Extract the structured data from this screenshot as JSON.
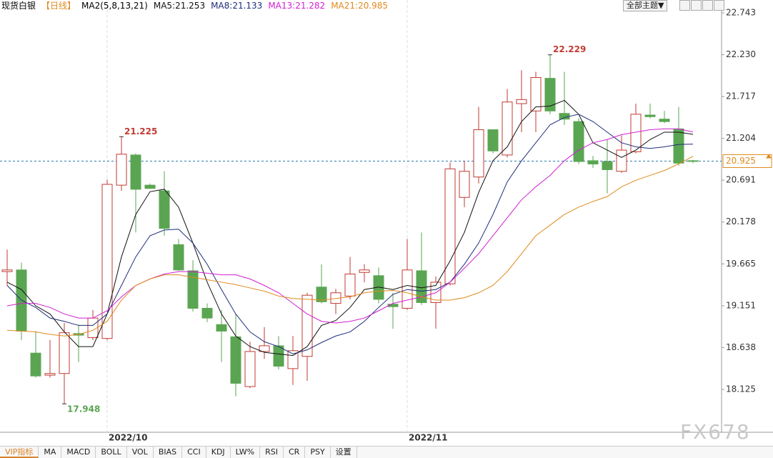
{
  "header": {
    "title": "现货白银",
    "period": "【日线】",
    "indicator": "MA2(5,8,13,21)",
    "theme_button": "全部主题▼"
  },
  "chart_data": {
    "type": "candlestick",
    "categories": [
      null,
      null,
      null,
      null,
      null,
      null,
      null,
      "2022/10",
      null,
      null,
      null,
      null,
      null,
      null,
      null,
      null,
      null,
      null,
      null,
      null,
      null,
      null,
      null,
      null,
      null,
      null,
      null,
      null,
      "2022/11",
      null,
      null,
      null,
      null,
      null,
      null,
      null,
      null,
      null,
      null,
      null,
      null,
      null,
      null,
      null,
      null,
      null,
      null,
      null,
      null
    ],
    "open": [
      19.57,
      19.59,
      18.57,
      18.3,
      18.32,
      18.81,
      18.76,
      18.75,
      20.63,
      21.0,
      20.63,
      20.56,
      19.9,
      19.58,
      19.12,
      18.92,
      18.77,
      18.16,
      18.59,
      18.66,
      18.38,
      18.53,
      19.38,
      19.18,
      19.27,
      19.56,
      19.52,
      19.17,
      19.12,
      19.58,
      19.19,
      19.42,
      20.48,
      20.73,
      21.31,
      21.0,
      21.63,
      21.54,
      21.94,
      21.51,
      21.41,
      20.93,
      20.92,
      20.8,
      21.04,
      21.49,
      21.44,
      21.32,
      20.93
    ],
    "high": [
      19.84,
      19.68,
      18.84,
      18.73,
      18.94,
      18.92,
      19.1,
      20.7,
      21.225,
      21.02,
      20.65,
      20.8,
      19.97,
      19.71,
      19.18,
      19.1,
      19.05,
      18.71,
      18.89,
      18.78,
      18.78,
      19.31,
      19.66,
      19.36,
      19.75,
      19.66,
      19.62,
      19.31,
      19.97,
      20.05,
      19.51,
      20.91,
      20.93,
      21.59,
      21.31,
      21.81,
      22.04,
      22.02,
      22.229,
      22.02,
      21.45,
      20.99,
      21.19,
      21.24,
      21.63,
      21.63,
      21.54,
      21.59,
      20.94
    ],
    "low": [
      19.4,
      18.73,
      18.27,
      18.27,
      17.948,
      18.46,
      18.73,
      18.73,
      20.56,
      20.05,
      20.59,
      20.01,
      19.58,
      19.08,
      18.95,
      18.46,
      18.04,
      18.14,
      18.5,
      18.37,
      18.18,
      18.23,
      19.18,
      19.05,
      19.23,
      19.44,
      19.18,
      18.87,
      19.1,
      19.16,
      18.87,
      19.4,
      20.36,
      20.65,
      21.02,
      20.97,
      21.28,
      21.28,
      21.5,
      21.37,
      20.89,
      20.84,
      20.53,
      20.78,
      21.02,
      21.45,
      21.39,
      20.87,
      20.9
    ],
    "close": [
      19.59,
      18.84,
      18.29,
      18.32,
      18.82,
      18.79,
      19.0,
      20.64,
      21.01,
      20.58,
      20.59,
      20.1,
      19.59,
      19.12,
      19.0,
      18.84,
      18.2,
      18.59,
      18.66,
      18.41,
      18.6,
      19.28,
      19.2,
      19.31,
      19.54,
      19.59,
      19.23,
      19.14,
      19.59,
      19.19,
      19.44,
      20.83,
      20.8,
      21.31,
      21.05,
      21.65,
      21.68,
      21.95,
      21.54,
      21.44,
      20.92,
      20.89,
      20.82,
      21.06,
      21.5,
      21.47,
      21.41,
      20.9,
      20.925
    ],
    "up_color": "#c23b32",
    "down_color": "#5aa552",
    "series": [
      {
        "name": "MA5:21.253",
        "color": "#111111",
        "values": [
          19.44,
          19.35,
          19.15,
          19.05,
          18.83,
          18.65,
          18.65,
          19.05,
          19.75,
          20.27,
          20.55,
          20.58,
          20.36,
          19.92,
          19.44,
          19.05,
          18.78,
          18.65,
          18.58,
          18.56,
          18.54,
          18.65,
          18.91,
          18.97,
          19.13,
          19.35,
          19.38,
          19.35,
          19.4,
          19.37,
          19.4,
          19.7,
          20.05,
          20.54,
          20.93,
          21.1,
          21.41,
          21.59,
          21.6,
          21.67,
          21.5,
          21.15,
          21.06,
          20.97,
          21.06,
          21.19,
          21.28,
          21.28,
          21.253
        ]
      },
      {
        "name": "MA8:21.133",
        "color": "#1f2d7a",
        "values": [
          19.4,
          19.22,
          19.13,
          19.0,
          18.96,
          18.91,
          18.91,
          19.05,
          19.4,
          19.75,
          20.01,
          20.08,
          20.09,
          19.92,
          19.66,
          19.35,
          19.05,
          18.83,
          18.71,
          18.65,
          18.56,
          18.61,
          18.7,
          18.78,
          18.83,
          18.96,
          19.13,
          19.29,
          19.35,
          19.33,
          19.35,
          19.44,
          19.66,
          19.92,
          20.27,
          20.67,
          20.93,
          21.15,
          21.37,
          21.46,
          21.5,
          21.41,
          21.28,
          21.15,
          21.1,
          21.08,
          21.1,
          21.13,
          21.133
        ]
      },
      {
        "name": "MA13:21.282",
        "color": "#d21fd2",
        "values": [
          19.15,
          19.18,
          19.18,
          19.13,
          19.05,
          19.0,
          19.0,
          19.09,
          19.26,
          19.4,
          19.48,
          19.54,
          19.57,
          19.57,
          19.55,
          19.53,
          19.53,
          19.48,
          19.4,
          19.31,
          19.18,
          19.05,
          18.96,
          18.94,
          18.96,
          19.0,
          19.09,
          19.18,
          19.22,
          19.26,
          19.31,
          19.44,
          19.61,
          19.79,
          20.01,
          20.23,
          20.45,
          20.61,
          20.75,
          20.93,
          21.06,
          21.15,
          21.19,
          21.25,
          21.28,
          21.31,
          21.32,
          21.32,
          21.282
        ]
      },
      {
        "name": "MA21:20.985",
        "color": "#e08a1e",
        "values": [
          18.85,
          18.84,
          18.83,
          18.8,
          18.78,
          18.8,
          18.85,
          18.96,
          19.22,
          19.4,
          19.48,
          19.53,
          19.53,
          19.5,
          19.47,
          19.44,
          19.41,
          19.37,
          19.33,
          19.27,
          19.24,
          19.23,
          19.22,
          19.24,
          19.26,
          19.31,
          19.33,
          19.34,
          19.31,
          19.26,
          19.22,
          19.22,
          19.25,
          19.31,
          19.4,
          19.57,
          19.79,
          20.01,
          20.14,
          20.27,
          20.36,
          20.43,
          20.49,
          20.61,
          20.69,
          20.75,
          20.81,
          20.89,
          20.985
        ]
      }
    ],
    "ylim": [
      17.643,
      22.901
    ],
    "yticks": [
      18.125,
      18.638,
      19.151,
      19.665,
      20.178,
      20.691,
      21.204,
      21.717,
      {
        "value": 22.23,
        "label": "22.230"
      },
      22.743
    ],
    "last_price": 20.925,
    "marked_highs": [
      8,
      38
    ],
    "marked_lows": [
      4
    ]
  },
  "tabs": [
    "VIP指标",
    "MA",
    "MACD",
    "BOLL",
    "VOL",
    "BIAS",
    "CCI",
    "KDJ",
    "LW%",
    "RSI",
    "CR",
    "PSY",
    "设置"
  ],
  "watermark": "FX678"
}
